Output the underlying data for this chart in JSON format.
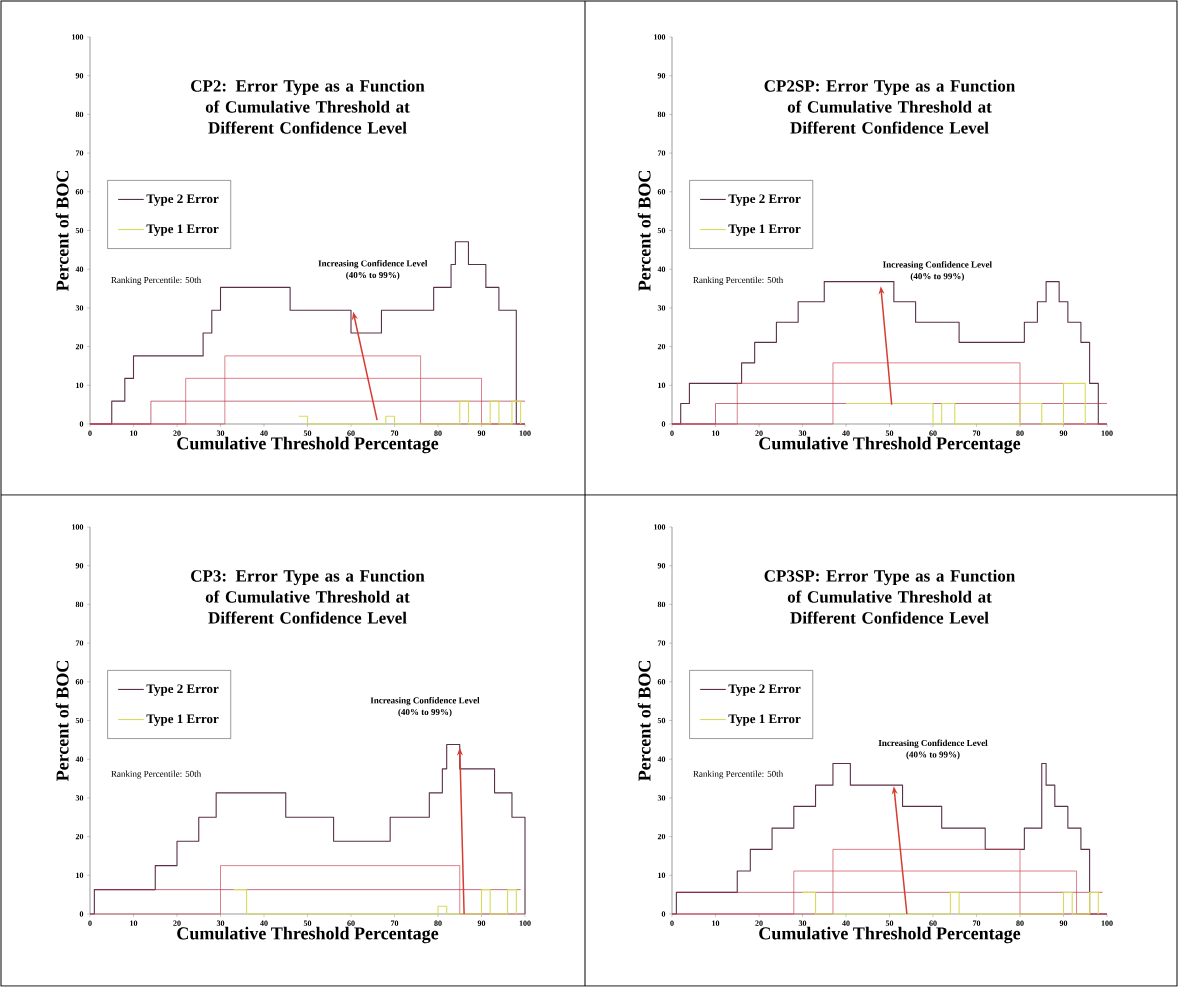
{
  "chart_data": [
    {
      "type": "step",
      "title": "CP2: Error Type as a Function of Cumulative Threshold at Different Confidence Level",
      "xlabel": "Cumulative Threshold Percentage",
      "ylabel": "Percent of BOC",
      "xlim": [
        0,
        100
      ],
      "ylim": [
        0,
        100
      ],
      "xticks": [
        0,
        10,
        20,
        30,
        40,
        50,
        60,
        70,
        80,
        90,
        100
      ],
      "yticks": [
        0,
        10,
        20,
        30,
        40,
        50,
        60,
        70,
        80,
        90,
        100
      ],
      "legend": "left",
      "annotations": [
        "Ranking Percentile: 50th",
        "Increasing Confidence Level",
        "(40% to 99%)"
      ],
      "series": [
        {
          "name": "Type 2 Error",
          "color": "#5a3048",
          "x": [
            0,
            3,
            5,
            8,
            10,
            26,
            28,
            30,
            46,
            60,
            67,
            69,
            79,
            83,
            84,
            87,
            91,
            94,
            98,
            100
          ],
          "values": [
            0,
            0,
            5.9,
            11.8,
            17.6,
            23.5,
            29.4,
            35.3,
            29.4,
            23.5,
            29.4,
            29.4,
            35.3,
            41.2,
            47.1,
            41.2,
            35.3,
            29.4,
            0,
            0
          ]
        },
        {
          "color": "#d04a5a",
          "x": [
            0,
            31,
            76,
            100
          ],
          "values": [
            0,
            17.6,
            0,
            0
          ]
        },
        {
          "color": "#d04a5a",
          "x": [
            0,
            22,
            90,
            100
          ],
          "values": [
            0,
            11.8,
            0,
            0
          ]
        },
        {
          "color": "#b03048",
          "x": [
            0,
            14,
            100
          ],
          "values": [
            0,
            5.9,
            5.9
          ]
        },
        {
          "name": "Type 1 Error",
          "color": "#d6dc5a",
          "x": [
            48,
            50,
            68,
            70,
            85,
            87,
            92,
            94,
            97,
            99
          ],
          "values": [
            2,
            0,
            2,
            0,
            5.9,
            0,
            5.9,
            0,
            5.9,
            0
          ]
        }
      ]
    },
    {
      "type": "step",
      "title": "CP2SP: Error Type as a Function of Cumulative Threshold at Different Confidence Level",
      "xlabel": "Cumulative Threshold Percentage",
      "ylabel": "Percent of BOC",
      "xlim": [
        0,
        100
      ],
      "ylim": [
        0,
        100
      ],
      "xticks": [
        0,
        10,
        20,
        30,
        40,
        50,
        60,
        70,
        80,
        90,
        100
      ],
      "yticks": [
        0,
        10,
        20,
        30,
        40,
        50,
        60,
        70,
        80,
        90,
        100
      ],
      "legend": "left",
      "annotations": [
        "Ranking Percentile: 50th",
        "Increasing Confidence Level",
        "(40% to 99%)"
      ],
      "series": [
        {
          "name": "Type 2 Error",
          "color": "#5a3048",
          "x": [
            0,
            2,
            4,
            16,
            19,
            24,
            29,
            35,
            51,
            56,
            66,
            76,
            81,
            84,
            86,
            89,
            91,
            94,
            96,
            98,
            100
          ],
          "values": [
            0,
            5.3,
            10.5,
            15.8,
            21.1,
            26.3,
            31.6,
            36.8,
            31.6,
            26.3,
            21.1,
            21.1,
            26.3,
            31.6,
            36.8,
            31.6,
            26.3,
            21.1,
            10.5,
            0,
            0
          ]
        },
        {
          "color": "#d04a5a",
          "x": [
            0,
            37,
            80,
            100
          ],
          "values": [
            0,
            15.8,
            0,
            0
          ]
        },
        {
          "color": "#d04a5a",
          "x": [
            0,
            15,
            90,
            100
          ],
          "values": [
            0,
            10.5,
            0,
            0
          ]
        },
        {
          "color": "#b03048",
          "x": [
            0,
            10,
            100
          ],
          "values": [
            0,
            5.3,
            5.3
          ]
        },
        {
          "name": "Type 1 Error",
          "color": "#d6dc5a",
          "x": [
            40,
            60,
            62,
            65,
            80,
            85,
            90,
            95
          ],
          "values": [
            5.3,
            0,
            5.3,
            0,
            5.3,
            0,
            10.5,
            0
          ]
        }
      ]
    },
    {
      "type": "step",
      "title": "CP3: Error Type as a Function of Cumulative Threshold at Different Confidence Level",
      "xlabel": "Cumulative Threshold Percentage",
      "ylabel": "Percent of BOC",
      "xlim": [
        0,
        100
      ],
      "ylim": [
        0,
        100
      ],
      "xticks": [
        0,
        10,
        20,
        30,
        40,
        50,
        60,
        70,
        80,
        90,
        100
      ],
      "yticks": [
        0,
        10,
        20,
        30,
        40,
        50,
        60,
        70,
        80,
        90,
        100
      ],
      "legend": "left",
      "annotations": [
        "Ranking Percentile: 50th",
        "Increasing Confidence Level",
        "(40% to 99%)"
      ],
      "series": [
        {
          "name": "Type 2 Error",
          "color": "#5a3048",
          "x": [
            0,
            1,
            15,
            20,
            25,
            29,
            45,
            56,
            69,
            78,
            81,
            82,
            85,
            93,
            97,
            100
          ],
          "values": [
            0,
            6.3,
            12.5,
            18.8,
            25,
            31.3,
            25,
            18.8,
            25,
            31.3,
            37.5,
            43.8,
            37.5,
            31.3,
            25,
            0
          ]
        },
        {
          "color": "#d04a5a",
          "x": [
            0,
            30,
            85,
            100
          ],
          "values": [
            0,
            12.5,
            0,
            0
          ]
        },
        {
          "color": "#b03048",
          "x": [
            1,
            20,
            99
          ],
          "values": [
            6.3,
            6.3,
            6.3
          ]
        },
        {
          "name": "Type 1 Error",
          "color": "#d6dc5a",
          "x": [
            33,
            36,
            80,
            82,
            90,
            92,
            96,
            98
          ],
          "values": [
            6.3,
            0,
            2,
            0,
            6.3,
            0,
            6.3,
            0
          ]
        }
      ]
    },
    {
      "type": "step",
      "title": "CP3SP: Error Type as a Function of Cumulative Threshold at Different Confidence Level",
      "xlabel": "Cumulative Threshold Percentage",
      "ylabel": "Percent of BOC",
      "xlim": [
        0,
        100
      ],
      "ylim": [
        0,
        100
      ],
      "xticks": [
        0,
        10,
        20,
        30,
        40,
        50,
        60,
        70,
        80,
        90,
        100
      ],
      "yticks": [
        0,
        10,
        20,
        30,
        40,
        50,
        60,
        70,
        80,
        90,
        100
      ],
      "legend": "left",
      "annotations": [
        "Ranking Percentile: 50th",
        "Increasing Confidence Level",
        "(40% to 99%)"
      ],
      "series": [
        {
          "name": "Type 2 Error",
          "color": "#5a3048",
          "x": [
            0,
            1,
            15,
            18,
            23,
            28,
            33,
            37,
            41,
            53,
            62,
            72,
            81,
            85,
            86,
            88,
            91,
            94,
            96,
            100
          ],
          "values": [
            0,
            5.6,
            11.1,
            16.7,
            22.2,
            27.8,
            33.3,
            38.9,
            33.3,
            27.8,
            22.2,
            16.7,
            22.2,
            38.9,
            33.3,
            27.8,
            22.2,
            16.7,
            0,
            0
          ]
        },
        {
          "color": "#d04a5a",
          "x": [
            0,
            37,
            80,
            100
          ],
          "values": [
            0,
            16.7,
            0,
            0
          ]
        },
        {
          "color": "#d04a5a",
          "x": [
            0,
            28,
            93,
            100
          ],
          "values": [
            0,
            11.1,
            0,
            0
          ]
        },
        {
          "color": "#b03048",
          "x": [
            1,
            20,
            99
          ],
          "values": [
            5.6,
            5.6,
            5.6
          ]
        },
        {
          "name": "Type 1 Error",
          "color": "#d6dc5a",
          "x": [
            30,
            33,
            64,
            66,
            90,
            92,
            96,
            98
          ],
          "values": [
            5.6,
            0,
            5.6,
            0,
            5.6,
            0,
            5.6,
            0
          ]
        }
      ]
    }
  ]
}
